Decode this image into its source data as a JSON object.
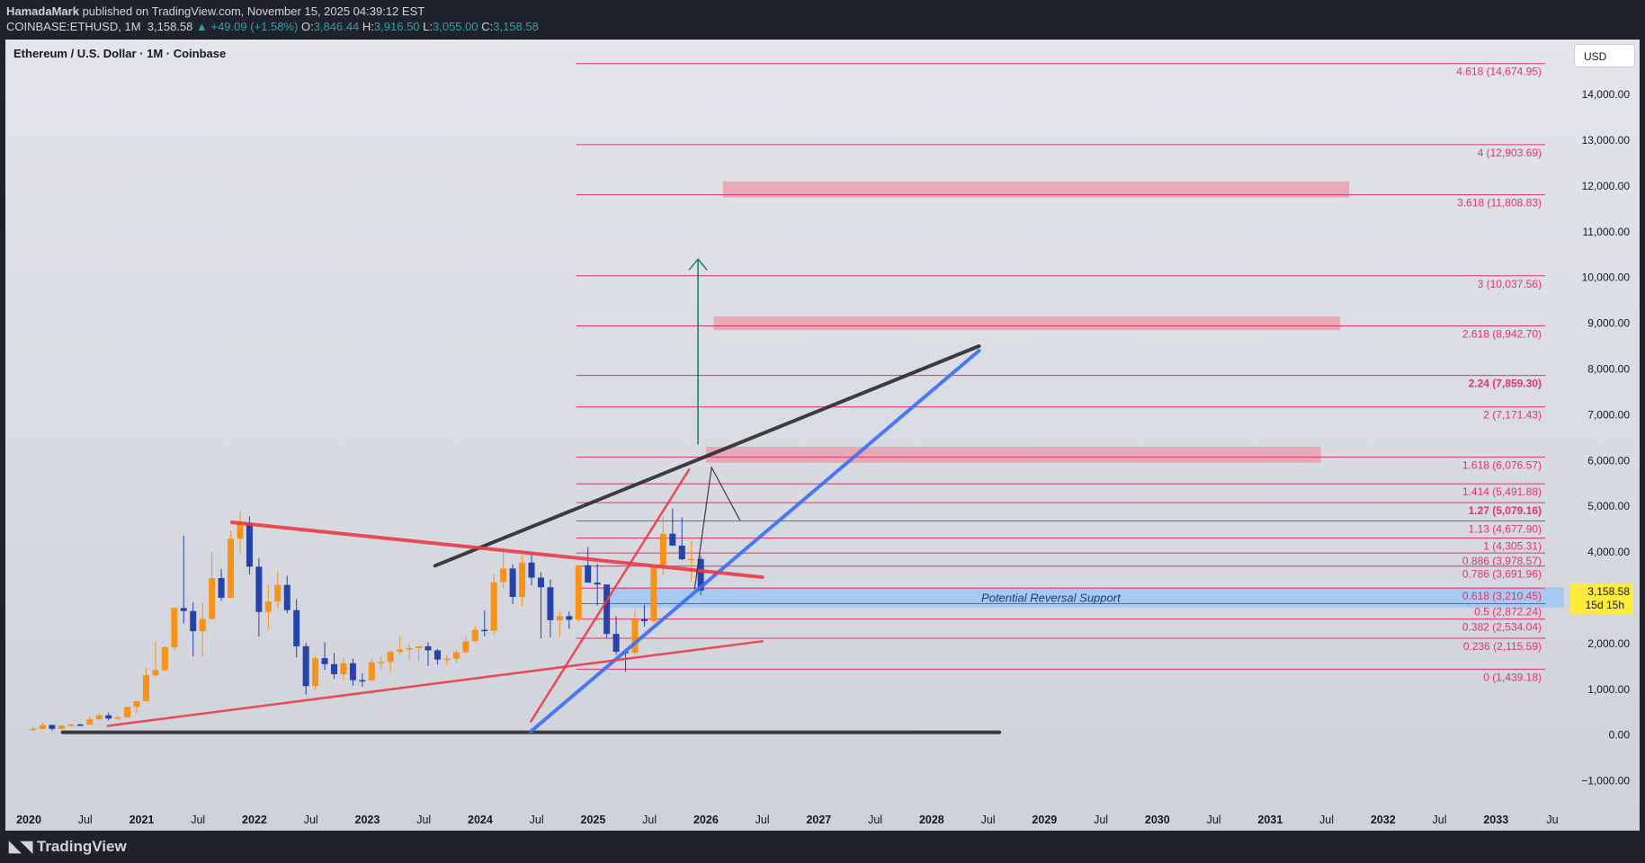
{
  "header": {
    "publisher": "HamadaMark",
    "published_text": "published on TradingView.com, November 15, 2025 04:39:12 EST",
    "symbol_line": "COINBASE:ETHUSD, 1M",
    "last": "3,158.58",
    "change": "▲ +49.09 (+1.58%)",
    "o_label": "O:",
    "o": "3,846.44",
    "h_label": "H:",
    "h": "3,916.50",
    "l_label": "L:",
    "l": "3,055.00",
    "c_label": "C:",
    "c": "3,158.58"
  },
  "chart_title": "Ethereum / U.S. Dollar · 1M · Coinbase",
  "currency_button": "USD",
  "footer": {
    "logo_text": "TradingView"
  },
  "colors": {
    "up": "#f7931a",
    "down": "#2742a8",
    "fib": "#e0346a",
    "zone": "#e89aa6",
    "support": "#9ec8f5",
    "trend_blue": "#3b6ef5",
    "trend_red": "#ec3a48",
    "trend_black": "#2a2a2a",
    "arrow": "#1f7a5a",
    "price_tag": "#ffeb3b"
  },
  "chart_data": {
    "type": "candlestick",
    "symbol": "COINBASE:ETHUSD",
    "timeframe": "1M",
    "y_ticks": [
      -1000,
      0,
      1000,
      2000,
      3000,
      4000,
      5000,
      6000,
      7000,
      8000,
      9000,
      10000,
      11000,
      12000,
      13000,
      14000
    ],
    "y_tick_labels": [
      "−1,000.00",
      "0.00",
      "1,000.00",
      "2,000.00",
      "3,000.00",
      "4,000.00",
      "5,000.00",
      "6,000.00",
      "7,000.00",
      "8,000.00",
      "9,000.00",
      "10,000.00",
      "11,000.00",
      "12,000.00",
      "13,000.00",
      "14,000.00"
    ],
    "ylim": [
      -1500,
      15200
    ],
    "x_range": [
      2020.0,
      2033.5
    ],
    "x_ticks": [
      {
        "t": 2020.0,
        "label": "2020",
        "bold": true
      },
      {
        "t": 2020.5,
        "label": "Jul",
        "bold": false
      },
      {
        "t": 2021.0,
        "label": "2021",
        "bold": true
      },
      {
        "t": 2021.5,
        "label": "Jul",
        "bold": false
      },
      {
        "t": 2022.0,
        "label": "2022",
        "bold": true
      },
      {
        "t": 2022.5,
        "label": "Jul",
        "bold": false
      },
      {
        "t": 2023.0,
        "label": "2023",
        "bold": true
      },
      {
        "t": 2023.5,
        "label": "Jul",
        "bold": false
      },
      {
        "t": 2024.0,
        "label": "2024",
        "bold": true
      },
      {
        "t": 2024.5,
        "label": "Jul",
        "bold": false
      },
      {
        "t": 2025.0,
        "label": "2025",
        "bold": true
      },
      {
        "t": 2025.5,
        "label": "Jul",
        "bold": false
      },
      {
        "t": 2026.0,
        "label": "2026",
        "bold": true
      },
      {
        "t": 2026.5,
        "label": "Jul",
        "bold": false
      },
      {
        "t": 2027.0,
        "label": "2027",
        "bold": true
      },
      {
        "t": 2027.5,
        "label": "Jul",
        "bold": false
      },
      {
        "t": 2028.0,
        "label": "2028",
        "bold": true
      },
      {
        "t": 2028.5,
        "label": "Jul",
        "bold": false
      },
      {
        "t": 2029.0,
        "label": "2029",
        "bold": true
      },
      {
        "t": 2029.5,
        "label": "Jul",
        "bold": false
      },
      {
        "t": 2030.0,
        "label": "2030",
        "bold": true
      },
      {
        "t": 2030.5,
        "label": "Jul",
        "bold": false
      },
      {
        "t": 2031.0,
        "label": "2031",
        "bold": true
      },
      {
        "t": 2031.5,
        "label": "Jul",
        "bold": false
      },
      {
        "t": 2032.0,
        "label": "2032",
        "bold": true
      },
      {
        "t": 2032.5,
        "label": "Jul",
        "bold": false
      },
      {
        "t": 2033.0,
        "label": "2033",
        "bold": true
      },
      {
        "t": 2033.5,
        "label": "Ju",
        "bold": false
      }
    ],
    "candles_ohlc": [
      [
        130,
        180,
        95,
        135
      ],
      [
        135,
        280,
        120,
        220
      ],
      [
        220,
        230,
        90,
        135
      ],
      [
        135,
        215,
        130,
        205
      ],
      [
        205,
        250,
        190,
        230
      ],
      [
        230,
        250,
        210,
        225
      ],
      [
        225,
        400,
        220,
        345
      ],
      [
        345,
        480,
        310,
        430
      ],
      [
        430,
        490,
        320,
        360
      ],
      [
        360,
        420,
        330,
        385
      ],
      [
        385,
        620,
        385,
        615
      ],
      [
        615,
        750,
        480,
        740
      ],
      [
        740,
        1470,
        715,
        1310
      ],
      [
        1310,
        2040,
        1270,
        1420
      ],
      [
        1420,
        1950,
        1400,
        1920
      ],
      [
        1920,
        2800,
        1850,
        2775
      ],
      [
        2775,
        4360,
        2440,
        2710
      ],
      [
        2710,
        2900,
        1720,
        2270
      ],
      [
        2270,
        2900,
        1710,
        2540
      ],
      [
        2540,
        4000,
        2510,
        3430
      ],
      [
        3430,
        3630,
        2930,
        3000
      ],
      [
        3000,
        4460,
        2990,
        4290
      ],
      [
        4290,
        4890,
        3970,
        4630
      ],
      [
        4630,
        4780,
        3510,
        3680
      ],
      [
        3680,
        3870,
        2150,
        2690
      ],
      [
        2690,
        3280,
        2300,
        2920
      ],
      [
        2920,
        3580,
        2770,
        3280
      ],
      [
        3280,
        3480,
        2660,
        2730
      ],
      [
        2730,
        2970,
        1700,
        1940
      ],
      [
        1940,
        2020,
        880,
        1070
      ],
      [
        1070,
        1750,
        990,
        1680
      ],
      [
        1680,
        2030,
        1420,
        1550
      ],
      [
        1550,
        1790,
        1220,
        1330
      ],
      [
        1330,
        1680,
        1190,
        1570
      ],
      [
        1570,
        1670,
        1080,
        1200
      ],
      [
        1200,
        1350,
        1060,
        1195
      ],
      [
        1195,
        1680,
        1180,
        1590
      ],
      [
        1590,
        1720,
        1420,
        1600
      ],
      [
        1600,
        1860,
        1370,
        1820
      ],
      [
        1820,
        2140,
        1760,
        1870
      ],
      [
        1870,
        2010,
        1640,
        1900
      ],
      [
        1900,
        1940,
        1620,
        1940
      ],
      [
        1940,
        2030,
        1510,
        1850
      ],
      [
        1850,
        1880,
        1540,
        1650
      ],
      [
        1650,
        1750,
        1530,
        1670
      ],
      [
        1670,
        1860,
        1560,
        1810
      ],
      [
        1810,
        2140,
        1780,
        2050
      ],
      [
        2050,
        2400,
        2030,
        2300
      ],
      [
        2300,
        2720,
        2160,
        2280
      ],
      [
        2280,
        3520,
        2180,
        3340
      ],
      [
        3340,
        4090,
        3200,
        3640
      ],
      [
        3640,
        3730,
        2860,
        3020
      ],
      [
        3020,
        3930,
        2810,
        3770
      ],
      [
        3770,
        3980,
        3270,
        3440
      ],
      [
        3440,
        3560,
        2110,
        3230
      ],
      [
        3230,
        3400,
        2130,
        2510
      ],
      [
        2510,
        2720,
        2150,
        2600
      ],
      [
        2600,
        2700,
        2320,
        2520
      ],
      [
        2520,
        3430,
        2480,
        3710
      ],
      [
        3710,
        4110,
        3490,
        3330
      ],
      [
        3330,
        3740,
        2830,
        3290
      ],
      [
        3290,
        2800,
        2120,
        2210
      ],
      [
        2210,
        2600,
        1750,
        1820
      ],
      [
        1820,
        1870,
        1380,
        1800
      ],
      [
        1800,
        2740,
        1760,
        2530
      ],
      [
        2530,
        2850,
        2370,
        2490
      ],
      [
        2490,
        3730,
        2450,
        3700
      ],
      [
        3700,
        4790,
        3500,
        4400
      ],
      [
        4400,
        4950,
        4210,
        4140
      ],
      [
        4140,
        4760,
        3820,
        3840
      ],
      [
        3840,
        4250,
        3350,
        3850
      ],
      [
        3846.44,
        3916.5,
        3055,
        3158.58
      ]
    ],
    "candles_start": 2020.0,
    "candle_step": 0.0833,
    "fib_levels": [
      {
        "ratio": "4.618",
        "price": 14674.95,
        "label": "4.618 (14,674.95)",
        "bold": false
      },
      {
        "ratio": "4",
        "price": 12903.69,
        "label": "4 (12,903.69)",
        "bold": false
      },
      {
        "ratio": "3.618",
        "price": 11808.83,
        "label": "3.618 (11,808.83)",
        "bold": false
      },
      {
        "ratio": "3",
        "price": 10037.56,
        "label": "3 (10,037.56)",
        "bold": false
      },
      {
        "ratio": "2.618",
        "price": 8942.7,
        "label": "2.618 (8,942.70)",
        "bold": false
      },
      {
        "ratio": "2.24",
        "price": 7859.3,
        "label": "2.24 (7,859.30)",
        "bold": true
      },
      {
        "ratio": "2",
        "price": 7171.43,
        "label": "2 (7,171.43)",
        "bold": false
      },
      {
        "ratio": "1.618",
        "price": 6076.57,
        "label": "1.618 (6,076.57)",
        "bold": false
      },
      {
        "ratio": "1.414",
        "price": 5491.88,
        "label": "1.414 (5,491.88)",
        "bold": false
      },
      {
        "ratio": "1.27",
        "price": 5079.16,
        "label": "1.27 (5,079.16)",
        "bold": true
      },
      {
        "ratio": "1.13",
        "price": 4677.9,
        "label": "1.13 (4,677.90)",
        "bold": false
      },
      {
        "ratio": "1",
        "price": 4305.31,
        "label": "1 (4,305.31)",
        "bold": false
      },
      {
        "ratio": "0.886",
        "price": 3978.57,
        "label": "0.886 (3,978.57)",
        "bold": false
      },
      {
        "ratio": "0.786",
        "price": 3691.96,
        "label": "0.786 (3,691.96)",
        "bold": false
      },
      {
        "ratio": "0.618",
        "price": 3210.45,
        "label": "0.618 (3,210.45)",
        "bold": false
      },
      {
        "ratio": "0.5",
        "price": 2872.24,
        "label": "0.5 (2,872.24)",
        "bold": false
      },
      {
        "ratio": "0.382",
        "price": 2534.04,
        "label": "0.382 (2,534.04)",
        "bold": false
      },
      {
        "ratio": "0.236",
        "price": 2115.59,
        "label": "0.236 (2,115.59)",
        "bold": false
      },
      {
        "ratio": "0",
        "price": 1439.18,
        "label": "0 (1,439.18)",
        "bold": false
      }
    ],
    "fib_start_t": 2024.85,
    "zones": [
      {
        "t1": 2026.15,
        "t2": 2031.7,
        "p1": 11750,
        "p2": 12100
      },
      {
        "t1": 2026.07,
        "t2": 2031.62,
        "p1": 8850,
        "p2": 9150
      },
      {
        "t1": 2026.0,
        "t2": 2031.45,
        "p1": 5950,
        "p2": 6300
      }
    ],
    "support_zone": {
      "t1": 2025.15,
      "t2": 2033.6,
      "p1": 2780,
      "p2": 3230,
      "label": "Potential Reversal Support"
    },
    "trendlines": [
      {
        "name": "black-upper",
        "color": "black",
        "w": 4,
        "pts": [
          [
            2023.6,
            3700
          ],
          [
            2028.42,
            8500
          ]
        ]
      },
      {
        "name": "black-base",
        "color": "black",
        "w": 4,
        "pts": [
          [
            2020.3,
            60
          ],
          [
            2028.6,
            60
          ]
        ]
      },
      {
        "name": "blue-channel",
        "color": "blue",
        "w": 4,
        "pts": [
          [
            2024.45,
            80
          ],
          [
            2028.42,
            8400
          ]
        ]
      },
      {
        "name": "red-upper",
        "color": "red",
        "w": 4,
        "pts": [
          [
            2021.8,
            4650
          ],
          [
            2026.5,
            3450
          ]
        ]
      },
      {
        "name": "red-lower",
        "color": "red",
        "w": 2.5,
        "pts": [
          [
            2020.7,
            200
          ],
          [
            2026.5,
            2050
          ]
        ]
      },
      {
        "name": "red-steep",
        "color": "red",
        "w": 2.5,
        "pts": [
          [
            2024.45,
            300
          ],
          [
            2025.85,
            5800
          ]
        ]
      },
      {
        "name": "projection",
        "color": "black",
        "w": 1.2,
        "pts": [
          [
            2025.9,
            3200
          ],
          [
            2026.05,
            5850
          ],
          [
            2026.3,
            4700
          ]
        ]
      }
    ],
    "target_arrow": {
      "t": 2025.93,
      "p_from": 6350,
      "p_to": 10400
    },
    "price_tag": {
      "price": "3,158.58",
      "countdown": "15d 15h",
      "value": 3158.58
    }
  }
}
